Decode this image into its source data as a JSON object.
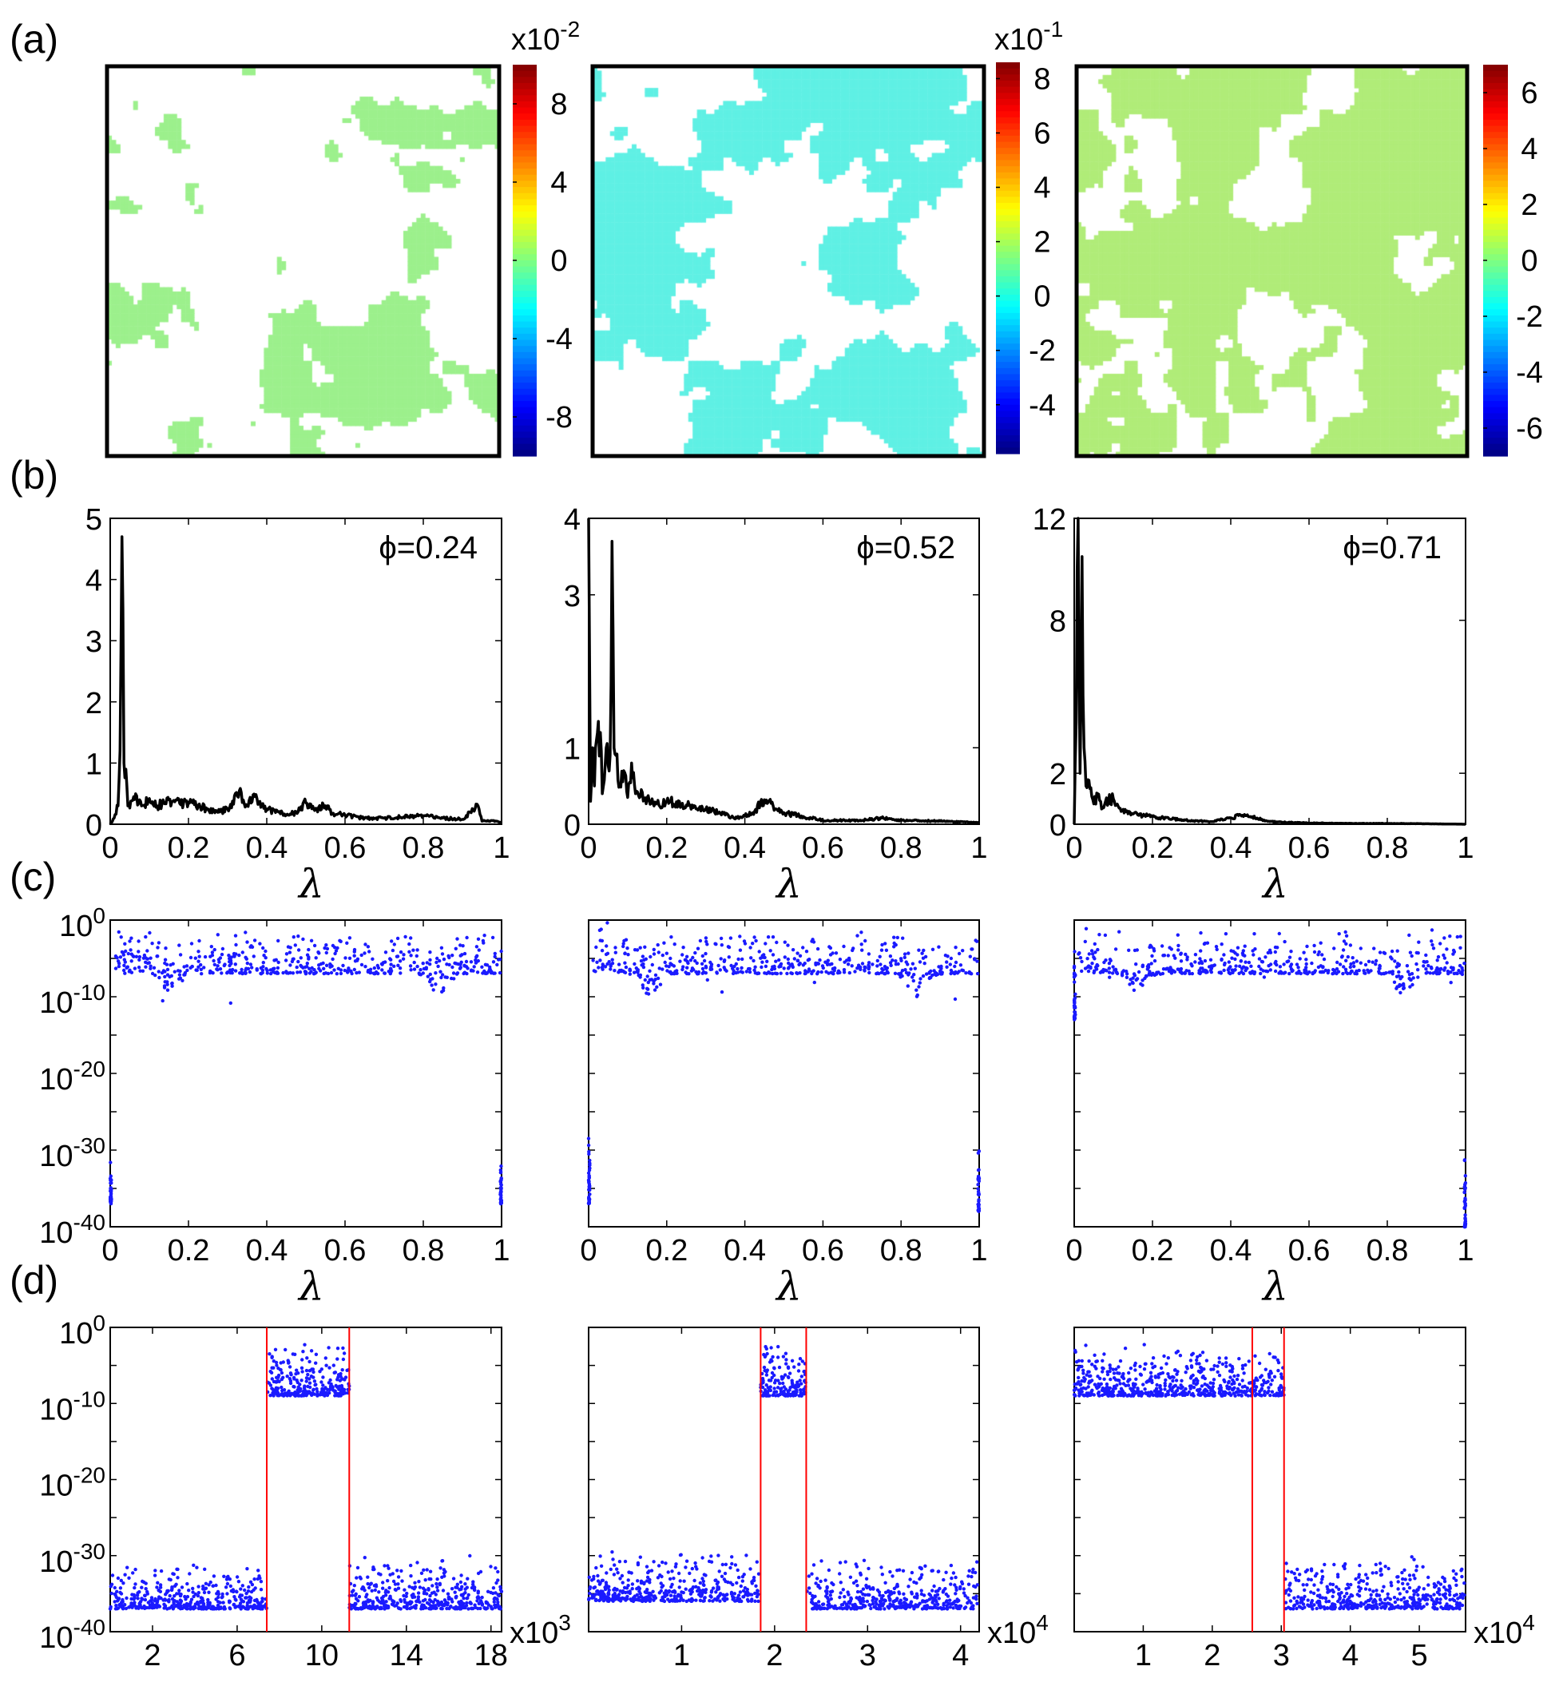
{
  "panel_labels": [
    "(a)",
    "(b)",
    "(c)",
    "(d)"
  ],
  "maps": [
    {
      "fraction": 0.24,
      "fill_color": "#9cf08c",
      "colorbar": {
        "multiplier": "x10",
        "exponent": "-2",
        "ticks": [
          8,
          4,
          0,
          -4,
          -8
        ],
        "range": [
          -10,
          10
        ]
      }
    },
    {
      "fraction": 0.52,
      "fill_color": "#5ff0e4",
      "colorbar": {
        "multiplier": "x10",
        "exponent": "-1",
        "ticks": [
          8,
          6,
          4,
          2,
          0,
          -2,
          -4
        ],
        "range": [
          -5.8,
          8.6
        ]
      }
    },
    {
      "fraction": 0.71,
      "fill_color": "#b0ec78",
      "colorbar": {
        "multiplier": "",
        "exponent": "",
        "ticks": [
          6,
          4,
          2,
          0,
          -2,
          -4,
          -6
        ],
        "range": [
          -7,
          7
        ]
      }
    }
  ],
  "chart_data": [
    {
      "row": "b",
      "type": "line",
      "annotation": "ϕ=0.24",
      "xlabel": "λ",
      "xlim": [
        0,
        1
      ],
      "ylim": [
        0,
        5
      ],
      "xticks": [
        0,
        0.2,
        0.4,
        0.6,
        0.8,
        1
      ],
      "yticks": [
        0,
        1,
        2,
        3,
        4,
        5
      ],
      "points": [
        [
          0,
          0
        ],
        [
          0.01,
          0.1
        ],
        [
          0.02,
          0.3
        ],
        [
          0.025,
          1.2
        ],
        [
          0.03,
          4.7
        ],
        [
          0.035,
          1.0
        ],
        [
          0.04,
          0.9
        ],
        [
          0.045,
          0.3
        ],
        [
          0.06,
          0.45
        ],
        [
          0.08,
          0.3
        ],
        [
          0.1,
          0.42
        ],
        [
          0.12,
          0.3
        ],
        [
          0.15,
          0.4
        ],
        [
          0.18,
          0.32
        ],
        [
          0.2,
          0.36
        ],
        [
          0.23,
          0.28
        ],
        [
          0.25,
          0.25
        ],
        [
          0.28,
          0.2
        ],
        [
          0.3,
          0.25
        ],
        [
          0.33,
          0.55
        ],
        [
          0.35,
          0.3
        ],
        [
          0.37,
          0.45
        ],
        [
          0.4,
          0.25
        ],
        [
          0.43,
          0.2
        ],
        [
          0.45,
          0.15
        ],
        [
          0.48,
          0.2
        ],
        [
          0.5,
          0.35
        ],
        [
          0.52,
          0.25
        ],
        [
          0.55,
          0.3
        ],
        [
          0.57,
          0.18
        ],
        [
          0.6,
          0.15
        ],
        [
          0.65,
          0.1
        ],
        [
          0.7,
          0.1
        ],
        [
          0.75,
          0.12
        ],
        [
          0.8,
          0.14
        ],
        [
          0.85,
          0.1
        ],
        [
          0.9,
          0.08
        ],
        [
          0.94,
          0.3
        ],
        [
          0.95,
          0.05
        ],
        [
          0.98,
          0.06
        ],
        [
          1,
          0.02
        ]
      ]
    },
    {
      "row": "b",
      "type": "line",
      "annotation": "ϕ=0.52",
      "xlabel": "λ",
      "xlim": [
        0,
        1
      ],
      "ylim": [
        0,
        4
      ],
      "xticks": [
        0,
        0.2,
        0.4,
        0.6,
        0.8,
        1
      ],
      "yticks": [
        0,
        1,
        3,
        4
      ],
      "points": [
        [
          0,
          4
        ],
        [
          0.005,
          0.3
        ],
        [
          0.01,
          1.0
        ],
        [
          0.015,
          0.5
        ],
        [
          0.02,
          1.1
        ],
        [
          0.03,
          1.2
        ],
        [
          0.035,
          0.4
        ],
        [
          0.045,
          1.0
        ],
        [
          0.055,
          0.9
        ],
        [
          0.06,
          3.7
        ],
        [
          0.065,
          1.0
        ],
        [
          0.07,
          0.9
        ],
        [
          0.08,
          0.5
        ],
        [
          0.09,
          0.7
        ],
        [
          0.1,
          0.35
        ],
        [
          0.11,
          0.8
        ],
        [
          0.12,
          0.4
        ],
        [
          0.15,
          0.35
        ],
        [
          0.18,
          0.25
        ],
        [
          0.2,
          0.3
        ],
        [
          0.25,
          0.25
        ],
        [
          0.3,
          0.2
        ],
        [
          0.35,
          0.12
        ],
        [
          0.38,
          0.08
        ],
        [
          0.42,
          0.15
        ],
        [
          0.45,
          0.32
        ],
        [
          0.48,
          0.2
        ],
        [
          0.5,
          0.15
        ],
        [
          0.55,
          0.1
        ],
        [
          0.6,
          0.05
        ],
        [
          0.7,
          0.05
        ],
        [
          0.75,
          0.08
        ],
        [
          0.8,
          0.05
        ],
        [
          0.9,
          0.04
        ],
        [
          1,
          0.02
        ]
      ]
    },
    {
      "row": "b",
      "type": "line",
      "annotation": "ϕ=0.71",
      "xlabel": "λ",
      "xlim": [
        0,
        1
      ],
      "ylim": [
        0,
        12
      ],
      "xticks": [
        0,
        0.2,
        0.4,
        0.6,
        0.8,
        1
      ],
      "yticks": [
        0,
        2,
        8,
        12
      ],
      "points": [
        [
          0,
          0
        ],
        [
          0.005,
          4
        ],
        [
          0.01,
          12
        ],
        [
          0.015,
          2
        ],
        [
          0.02,
          10.5
        ],
        [
          0.025,
          3
        ],
        [
          0.03,
          1.5
        ],
        [
          0.04,
          1.4
        ],
        [
          0.05,
          0.8
        ],
        [
          0.06,
          1.2
        ],
        [
          0.07,
          0.6
        ],
        [
          0.08,
          0.9
        ],
        [
          0.1,
          1.0
        ],
        [
          0.12,
          0.5
        ],
        [
          0.15,
          0.4
        ],
        [
          0.2,
          0.3
        ],
        [
          0.25,
          0.2
        ],
        [
          0.3,
          0.15
        ],
        [
          0.35,
          0.1
        ],
        [
          0.4,
          0.25
        ],
        [
          0.43,
          0.35
        ],
        [
          0.45,
          0.3
        ],
        [
          0.5,
          0.1
        ],
        [
          0.6,
          0.05
        ],
        [
          0.7,
          0.03
        ],
        [
          0.8,
          0.03
        ],
        [
          0.9,
          0.02
        ],
        [
          1,
          0
        ]
      ]
    },
    {
      "row": "c",
      "type": "scatter",
      "xlabel": "λ",
      "xlim": [
        0,
        1
      ],
      "ylim_log10": [
        -40,
        0
      ],
      "xticks": [
        0,
        0.2,
        0.4,
        0.6,
        0.8,
        1
      ],
      "yticks_exp": [
        0,
        -10,
        -20,
        -30,
        -40
      ],
      "clusters": [
        {
          "x": [
            0.01,
            1
          ],
          "log10y": [
            -7,
            -1
          ],
          "n": 520
        },
        {
          "x": [
            0,
            0.003
          ],
          "log10y": [
            -37,
            -30
          ],
          "n": 40
        },
        {
          "x": [
            0.997,
            1
          ],
          "log10y": [
            -37,
            -30
          ],
          "n": 40
        }
      ]
    },
    {
      "row": "c",
      "type": "scatter",
      "xlabel": "λ",
      "xlim": [
        0,
        1
      ],
      "ylim_log10": [
        -40,
        0
      ],
      "xticks": [
        0,
        0.2,
        0.4,
        0.6,
        0.8,
        1
      ],
      "yticks_exp": [],
      "clusters": [
        {
          "x": [
            0.01,
            1
          ],
          "log10y": [
            -7,
            -1
          ],
          "n": 520
        },
        {
          "x": [
            0,
            0.003
          ],
          "log10y": [
            -37,
            -28
          ],
          "n": 40
        },
        {
          "x": [
            0.997,
            1
          ],
          "log10y": [
            -38,
            -29
          ],
          "n": 40
        }
      ]
    },
    {
      "row": "c",
      "type": "scatter",
      "xlabel": "λ",
      "xlim": [
        0,
        1
      ],
      "ylim_log10": [
        -40,
        0
      ],
      "xticks": [
        0,
        0.2,
        0.4,
        0.6,
        0.8,
        1
      ],
      "yticks_exp": [],
      "clusters": [
        {
          "x": [
            0.01,
            1
          ],
          "log10y": [
            -7,
            -1
          ],
          "n": 520
        },
        {
          "x": [
            0,
            0.003
          ],
          "log10y": [
            -13,
            -2
          ],
          "n": 40
        },
        {
          "x": [
            0.997,
            1
          ],
          "log10y": [
            -40,
            -30
          ],
          "n": 40
        }
      ]
    },
    {
      "row": "d",
      "type": "scatter",
      "xlim": [
        0,
        18.5
      ],
      "ylim_log10": [
        -40,
        0
      ],
      "x_multiplier": "x10",
      "x_exponent": "3",
      "xticks": [
        2,
        6,
        10,
        14,
        18
      ],
      "yticks_exp": [
        0,
        -10,
        -20,
        -30,
        -40
      ],
      "red_lines": [
        7.4,
        11.3
      ],
      "clusters": [
        {
          "x": [
            0,
            7.4
          ],
          "log10y": [
            -37,
            -31
          ],
          "n": 420
        },
        {
          "x": [
            7.4,
            11.3
          ],
          "log10y": [
            -9,
            -2
          ],
          "n": 260
        },
        {
          "x": [
            11.3,
            18.5
          ],
          "log10y": [
            -37,
            -30
          ],
          "n": 420
        }
      ]
    },
    {
      "row": "d",
      "type": "scatter",
      "xlim": [
        0,
        4.2
      ],
      "ylim_log10": [
        -40,
        0
      ],
      "x_multiplier": "x10",
      "x_exponent": "4",
      "xticks": [
        1,
        2,
        3,
        4
      ],
      "yticks_exp": [],
      "red_lines": [
        1.85,
        2.34
      ],
      "clusters": [
        {
          "x": [
            0,
            1.85
          ],
          "log10y": [
            -36,
            -29
          ],
          "n": 420
        },
        {
          "x": [
            1.85,
            2.34
          ],
          "log10y": [
            -9,
            -2
          ],
          "n": 160
        },
        {
          "x": [
            2.34,
            4.2
          ],
          "log10y": [
            -37,
            -30
          ],
          "n": 420
        }
      ]
    },
    {
      "row": "d",
      "type": "scatter",
      "xlim": [
        0,
        5.67
      ],
      "ylim_log10": [
        -40,
        0
      ],
      "x_multiplier": "x10",
      "x_exponent": "4",
      "xticks": [
        1,
        2,
        3,
        4,
        5
      ],
      "yticks_exp": [],
      "red_lines": [
        2.58,
        3.04
      ],
      "clusters": [
        {
          "x": [
            0,
            3.04
          ],
          "log10y": [
            -9,
            -2
          ],
          "n": 600
        },
        {
          "x": [
            3.04,
            5.67
          ],
          "log10y": [
            -37,
            -30
          ],
          "n": 460
        }
      ]
    }
  ]
}
